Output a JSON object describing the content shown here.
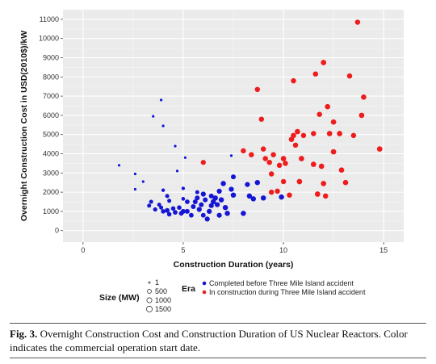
{
  "chart_data": {
    "type": "scatter",
    "xlabel": "Construction Duration (years)",
    "ylabel": "Overnight Construction Cost in USD(2010$)/kW",
    "xlim": [
      -1,
      16
    ],
    "ylim": [
      -600,
      11500
    ],
    "x_ticks": [
      0,
      5,
      10,
      15
    ],
    "y_ticks": [
      0,
      1000,
      2000,
      3000,
      4000,
      5000,
      6000,
      7000,
      8000,
      9000,
      10000,
      11000
    ],
    "grid": true,
    "legend": {
      "size_title": "Size (MW)",
      "size_entries": [
        "1",
        "500",
        "1000",
        "1500"
      ],
      "color_title": "Era",
      "color_entries": [
        "Completed before Three Mile Island accident",
        "In construction during Three Mile Island accident"
      ]
    },
    "colors": {
      "background": "#ebebeb",
      "grid": "#ffffff",
      "before": "#1515d6",
      "during": "#ee1c1c"
    },
    "series": [
      {
        "name": "Completed before Three Mile Island accident",
        "points": [
          [
            1.8,
            3400,
            80
          ],
          [
            2.6,
            2950,
            80
          ],
          [
            2.6,
            2150,
            80
          ],
          [
            3.0,
            2550,
            80
          ],
          [
            3.4,
            1500,
            500
          ],
          [
            3.3,
            1300,
            500
          ],
          [
            3.6,
            1100,
            600
          ],
          [
            3.8,
            1350,
            500
          ],
          [
            3.9,
            1200,
            500
          ],
          [
            4.0,
            1000,
            700
          ],
          [
            4.2,
            1050,
            900
          ],
          [
            4.3,
            850,
            700
          ],
          [
            4.5,
            1150,
            700
          ],
          [
            4.6,
            950,
            800
          ],
          [
            4.8,
            1200,
            700
          ],
          [
            4.9,
            900,
            800
          ],
          [
            5.0,
            1000,
            900
          ],
          [
            5.2,
            1000,
            900
          ],
          [
            5.2,
            1500,
            800
          ],
          [
            5.4,
            800,
            800
          ],
          [
            5.5,
            1250,
            900
          ],
          [
            5.6,
            1500,
            900
          ],
          [
            5.7,
            1700,
            900
          ],
          [
            5.8,
            1100,
            1000
          ],
          [
            5.9,
            1350,
            900
          ],
          [
            6.0,
            1900,
            1000
          ],
          [
            6.0,
            800,
            800
          ],
          [
            6.1,
            1600,
            900
          ],
          [
            6.2,
            600,
            1000
          ],
          [
            6.3,
            1000,
            1000
          ],
          [
            6.4,
            1800,
            900
          ],
          [
            6.4,
            1300,
            1000
          ],
          [
            6.5,
            1500,
            1100
          ],
          [
            6.6,
            1700,
            1100
          ],
          [
            6.7,
            1350,
            1000
          ],
          [
            6.8,
            2050,
            1000
          ],
          [
            6.8,
            800,
            1000
          ],
          [
            6.9,
            1600,
            1100
          ],
          [
            7.0,
            2450,
            1100
          ],
          [
            7.1,
            1200,
            1100
          ],
          [
            7.2,
            900,
            1100
          ],
          [
            7.4,
            2150,
            1000
          ],
          [
            7.5,
            1850,
            1100
          ],
          [
            8.2,
            2400,
            1000
          ],
          [
            8.3,
            1800,
            1100
          ],
          [
            8.5,
            1650,
            1100
          ],
          [
            8.7,
            2500,
            1100
          ],
          [
            9.0,
            1700,
            1100
          ],
          [
            8.0,
            900,
            1100
          ],
          [
            9.9,
            1750,
            1100
          ],
          [
            7.5,
            2800,
            900
          ],
          [
            4.2,
            1800,
            500
          ],
          [
            4.0,
            2100,
            300
          ],
          [
            4.3,
            1550,
            500
          ],
          [
            5.0,
            2200,
            300
          ],
          [
            5.7,
            2000,
            500
          ],
          [
            7.4,
            3900,
            80
          ],
          [
            3.9,
            6800,
            80
          ],
          [
            4.0,
            5450,
            80
          ],
          [
            3.5,
            5950,
            80
          ],
          [
            4.6,
            4400,
            80
          ],
          [
            4.7,
            3100,
            80
          ],
          [
            5.1,
            3800,
            80
          ],
          [
            5.0,
            1650,
            400
          ]
        ]
      },
      {
        "name": "In construction during Three Mile Island accident",
        "points": [
          [
            6.0,
            3550,
            1000
          ],
          [
            8.0,
            4150,
            1100
          ],
          [
            8.4,
            3950,
            1100
          ],
          [
            8.7,
            7350,
            1100
          ],
          [
            8.9,
            5800,
            1100
          ],
          [
            9.0,
            4250,
            1100
          ],
          [
            9.1,
            3750,
            1100
          ],
          [
            9.3,
            3550,
            1100
          ],
          [
            9.4,
            2950,
            1100
          ],
          [
            9.5,
            3950,
            1100
          ],
          [
            9.7,
            2050,
            1100
          ],
          [
            9.8,
            3400,
            1100
          ],
          [
            10.0,
            3750,
            1200
          ],
          [
            10.3,
            1850,
            1100
          ],
          [
            10.4,
            4750,
            1200
          ],
          [
            10.5,
            4950,
            1200
          ],
          [
            10.5,
            7800,
            1100
          ],
          [
            10.6,
            4450,
            1100
          ],
          [
            10.7,
            5150,
            1200
          ],
          [
            10.8,
            2550,
            1200
          ],
          [
            10.9,
            3750,
            1200
          ],
          [
            11.0,
            4950,
            1100
          ],
          [
            11.5,
            3450,
            1200
          ],
          [
            11.6,
            8150,
            1100
          ],
          [
            11.7,
            1900,
            1200
          ],
          [
            11.8,
            6050,
            1100
          ],
          [
            11.9,
            3350,
            1200
          ],
          [
            12.0,
            8750,
            1200
          ],
          [
            12.0,
            2450,
            1200
          ],
          [
            12.1,
            1800,
            1100
          ],
          [
            12.2,
            6450,
            1200
          ],
          [
            12.3,
            5050,
            1200
          ],
          [
            12.5,
            5650,
            1200
          ],
          [
            12.8,
            5050,
            1200
          ],
          [
            12.9,
            3150,
            1200
          ],
          [
            13.1,
            2500,
            1200
          ],
          [
            13.3,
            8050,
            1100
          ],
          [
            13.5,
            4950,
            1100
          ],
          [
            13.7,
            10850,
            1100
          ],
          [
            13.9,
            6000,
            1200
          ],
          [
            14.0,
            6950,
            1200
          ],
          [
            14.8,
            4250,
            1200
          ],
          [
            10.0,
            2550,
            1100
          ],
          [
            9.4,
            2000,
            1100
          ],
          [
            10.1,
            3500,
            1100
          ],
          [
            11.5,
            5050,
            1100
          ],
          [
            12.5,
            4100,
            1200
          ]
        ]
      }
    ]
  },
  "caption": {
    "label": "Fig. 3.",
    "text": " Overnight Construction Cost and Construction Duration of US Nuclear Reactors. Color indicates the commercial operation start date."
  }
}
